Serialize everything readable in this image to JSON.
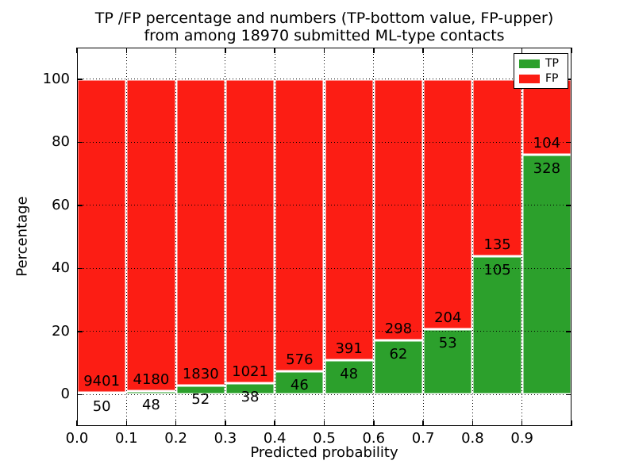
{
  "title": {
    "line1": "TP /FP percentage and numbers (TP-bottom value, FP-upper)",
    "line2": "from among 18970 submitted ML-type contacts"
  },
  "chart_data": {
    "type": "bar",
    "stacked": true,
    "title": "TP /FP percentage and numbers (TP-bottom value, FP-upper)\nfrom among 18970 submitted ML-type contacts",
    "xlabel": "Predicted probability",
    "ylabel": "Percentage",
    "total_submitted": 18970,
    "bins": {
      "start": 0.0,
      "width": 0.1,
      "count": 10
    },
    "x_tick_labels": [
      "0.0",
      "0.1",
      "0.2",
      "0.3",
      "0.4",
      "0.5",
      "0.6",
      "0.7",
      "0.8",
      "0.9"
    ],
    "y_tick_values": [
      0,
      20,
      40,
      60,
      80,
      100
    ],
    "xlim": [
      0.0,
      1.0
    ],
    "ylim": [
      -10,
      110
    ],
    "grid": {
      "style": "dotted",
      "color": "#000000",
      "above_bars": true
    },
    "bar_edge_color": "#ffffff",
    "background": "#ffffff",
    "series": [
      {
        "name": "TP",
        "color": "#2ca02c",
        "counts": [
          50,
          48,
          52,
          38,
          46,
          48,
          62,
          53,
          105,
          328
        ]
      },
      {
        "name": "FP",
        "color": "#fc1d14",
        "counts": [
          9401,
          4180,
          1830,
          1021,
          576,
          391,
          298,
          204,
          135,
          104
        ]
      }
    ],
    "value_labels": {
      "tp_position": "below TP/FP boundary",
      "fp_position": "above TP/FP boundary"
    },
    "legend": {
      "position": "upper-right",
      "entries": [
        {
          "label": "TP",
          "color": "#2ca02c"
        },
        {
          "label": "FP",
          "color": "#fc1d14"
        }
      ]
    }
  }
}
